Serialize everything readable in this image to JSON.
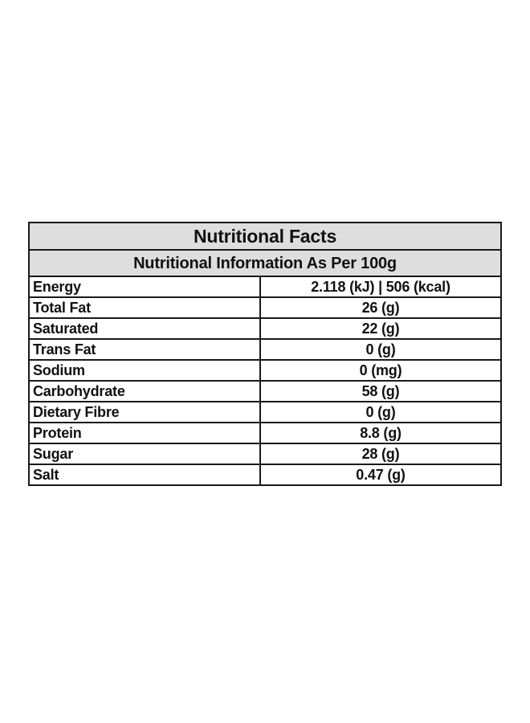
{
  "title": "Nutritional Facts",
  "subtitle": "Nutritional Information As Per 100g",
  "rows": [
    {
      "label": "Energy",
      "value": "2.118 (kJ) | 506 (kcal)"
    },
    {
      "label": "Total Fat",
      "value": "26 (g)"
    },
    {
      "label": "Saturated",
      "value": "22 (g)"
    },
    {
      "label": "Trans Fat",
      "value": "0 (g)"
    },
    {
      "label": "Sodium",
      "value": "0 (mg)"
    },
    {
      "label": "Carbohydrate",
      "value": "58 (g)"
    },
    {
      "label": "Dietary Fibre",
      "value": "0 (g)"
    },
    {
      "label": "Protein",
      "value": "8.8 (g)"
    },
    {
      "label": "Sugar",
      "value": "28 (g)"
    },
    {
      "label": "Salt",
      "value": "0.47 (g)"
    }
  ],
  "colors": {
    "header_background": "#dedede",
    "border": "#1a1a1a",
    "text": "#111111"
  }
}
